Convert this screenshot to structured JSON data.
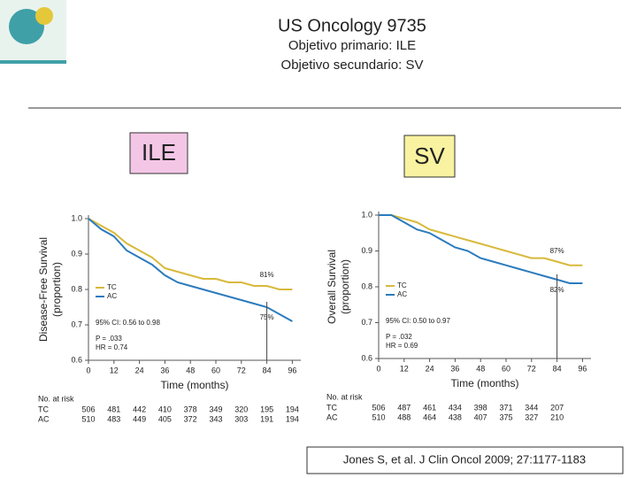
{
  "slide": {
    "title": "US Oncology 9735",
    "subtitle_lines": [
      "Objetivo primario: ILE",
      "Objetivo secundario: SV"
    ],
    "labels": [
      "ILE",
      "SV"
    ],
    "citation": "Jones S, et al. J Clin Oncol 2009; 27:1177-1183"
  },
  "chart_data": [
    {
      "type": "line",
      "y_label": [
        "Disease-Free Survival",
        "(proportion)"
      ],
      "x_label": "Time (months)",
      "x": [
        0,
        6,
        12,
        18,
        24,
        30,
        36,
        42,
        48,
        54,
        60,
        66,
        72,
        78,
        84,
        90,
        96
      ],
      "xlim": [
        0,
        100
      ],
      "xticks": [
        0,
        12,
        24,
        36,
        48,
        60,
        72,
        84,
        96
      ],
      "ylim": [
        0.6,
        1
      ],
      "yticks": [
        0.6,
        0.7,
        0.8,
        0.9,
        {
          "value": 1,
          "label": "1.0"
        }
      ],
      "series": [
        {
          "name": "TC",
          "color": "#d8b93a",
          "values": [
            1,
            0.98,
            0.96,
            0.93,
            0.91,
            0.89,
            0.86,
            0.85,
            0.84,
            0.83,
            0.83,
            0.82,
            0.82,
            0.81,
            0.81,
            0.8,
            0.8
          ],
          "end_label": "81%"
        },
        {
          "name": "AC",
          "color": "#2b7bbd",
          "values": [
            1,
            0.97,
            0.95,
            0.91,
            0.89,
            0.87,
            0.84,
            0.82,
            0.81,
            0.8,
            0.79,
            0.78,
            0.77,
            0.76,
            0.75,
            0.73,
            0.71
          ],
          "end_label": "75%"
        }
      ],
      "reference_x": 84,
      "legend": "lower left",
      "stats": [
        "95% CI: 0.56 to 0.98",
        "P = .033",
        "HR = 0.74"
      ],
      "risk_table": {
        "title": "No. at risk",
        "rows": [
          {
            "name": "TC",
            "values": [
              506,
              481,
              442,
              410,
              378,
              349,
              320,
              195,
              194
            ]
          },
          {
            "name": "AC",
            "values": [
              510,
              483,
              449,
              405,
              372,
              343,
              303,
              191,
              194
            ]
          }
        ]
      }
    },
    {
      "type": "line",
      "y_label": [
        "Overall Survival",
        "(proportion)"
      ],
      "x_label": "Time (months)",
      "x": [
        0,
        6,
        12,
        18,
        24,
        30,
        36,
        42,
        48,
        54,
        60,
        66,
        72,
        78,
        84,
        90,
        96
      ],
      "xlim": [
        0,
        100
      ],
      "xticks": [
        0,
        12,
        24,
        36,
        48,
        60,
        72,
        84,
        96
      ],
      "ylim": [
        0.6,
        1
      ],
      "yticks": [
        0.6,
        0.7,
        0.8,
        0.9,
        {
          "value": 1,
          "label": "1.0"
        }
      ],
      "series": [
        {
          "name": "TC",
          "color": "#d8b93a",
          "values": [
            1,
            1,
            0.99,
            0.98,
            0.96,
            0.95,
            0.94,
            0.93,
            0.92,
            0.91,
            0.9,
            0.89,
            0.88,
            0.88,
            0.87,
            0.86,
            0.86
          ],
          "end_label": "87%"
        },
        {
          "name": "AC",
          "color": "#2b7bbd",
          "values": [
            1,
            1,
            0.98,
            0.96,
            0.95,
            0.93,
            0.91,
            0.9,
            0.88,
            0.87,
            0.86,
            0.85,
            0.84,
            0.83,
            0.82,
            0.81,
            0.81
          ],
          "end_label": "82%"
        }
      ],
      "reference_x": 84,
      "legend": "lower left",
      "stats": [
        "95% CI: 0.50 to 0.97",
        "P = .032",
        "HR = 0.69"
      ],
      "risk_table": {
        "title": "No. at risk",
        "rows": [
          {
            "name": "TC",
            "values": [
              506,
              487,
              461,
              434,
              398,
              371,
              344,
              207
            ]
          },
          {
            "name": "AC",
            "values": [
              510,
              488,
              464,
              438,
              407,
              375,
              327,
              210
            ]
          }
        ]
      }
    }
  ]
}
